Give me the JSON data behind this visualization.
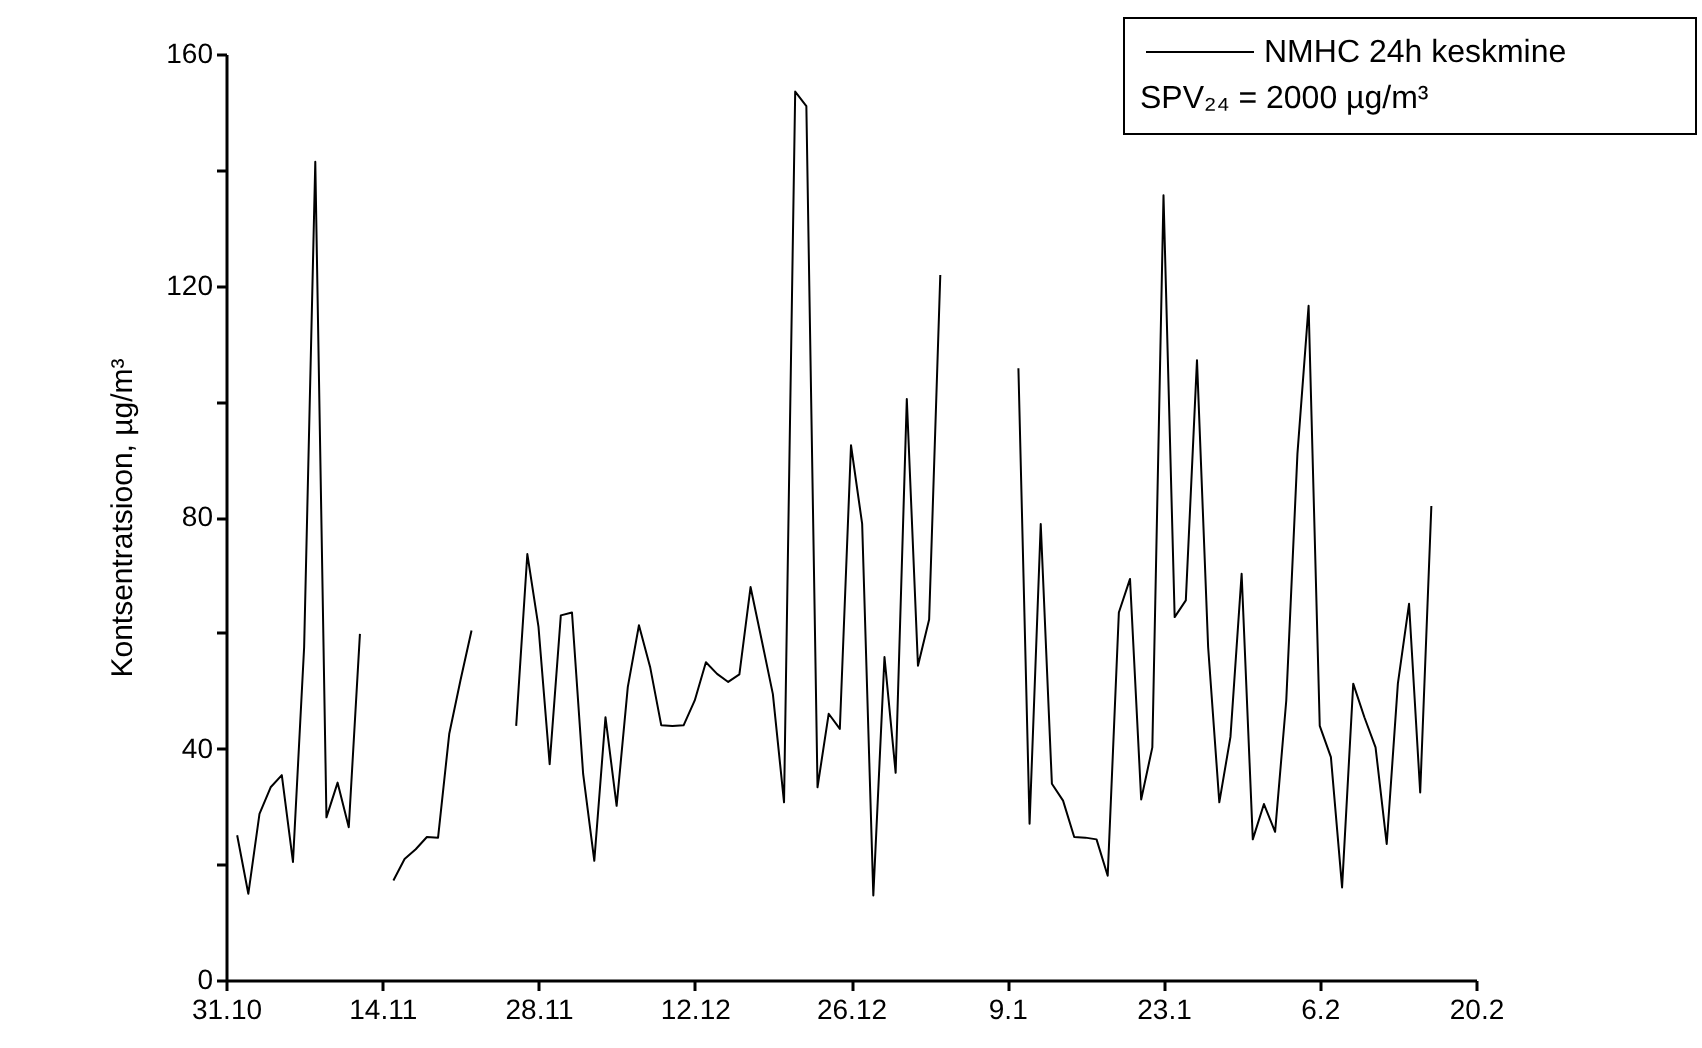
{
  "chart_data": {
    "type": "line",
    "ylabel": "Kontsentratsioon, µg/m³",
    "annotations": [
      "SPV₂₄ = 2000 µg/m³"
    ],
    "categories": [
      "31.10",
      null,
      null,
      null,
      null,
      null,
      null,
      null,
      null,
      null,
      null,
      null,
      null,
      null,
      "14.11",
      null,
      null,
      null,
      null,
      null,
      null,
      null,
      null,
      null,
      null,
      null,
      null,
      null,
      "28.11",
      null,
      null,
      null,
      null,
      null,
      null,
      null,
      null,
      null,
      null,
      null,
      null,
      null,
      "12.12",
      null,
      null,
      null,
      null,
      null,
      null,
      null,
      null,
      null,
      null,
      null,
      null,
      null,
      "26.12",
      null,
      null,
      null,
      null,
      null,
      null,
      null,
      null,
      null,
      null,
      null,
      null,
      null,
      "9.1",
      null,
      null,
      null,
      null,
      null,
      null,
      null,
      null,
      null,
      null,
      null,
      null,
      null,
      "23.1",
      null,
      null,
      null,
      null,
      null,
      null,
      null,
      null,
      null,
      null,
      null,
      null,
      null,
      "6.2",
      null,
      null,
      null,
      null,
      null,
      null,
      null,
      null,
      null,
      null,
      null,
      null,
      null,
      "20.2"
    ],
    "series": [
      {
        "name": "NMHC 24h keskmine",
        "color": "#000000",
        "values": [
          null,
          25.0,
          14.9,
          28.7,
          33.3,
          35.4,
          20.4,
          57.5,
          141.4,
          28.1,
          34.1,
          26.4,
          59.8,
          null,
          null,
          17.2,
          20.9,
          22.6,
          24.7,
          24.6,
          42.5,
          51.7,
          60.4,
          null,
          null,
          null,
          43.9,
          73.6,
          61.0,
          37.3,
          63.0,
          63.5,
          35.6,
          20.6,
          45.4,
          30.1,
          50.6,
          61.3,
          54.1,
          44.0,
          43.9,
          44.0,
          48.3,
          54.9,
          52.9,
          51.5,
          52.8,
          67.9,
          58.7,
          49.4,
          30.7,
          153.5,
          151.0,
          33.3,
          46.0,
          43.4,
          92.4,
          78.8,
          14.6,
          55.8,
          35.8,
          100.4,
          54.3,
          62.3,
          121.8,
          null,
          null,
          null,
          null,
          null,
          null,
          105.7,
          27.0,
          78.8,
          33.9,
          31.0,
          24.7,
          24.6,
          24.3,
          18.0,
          63.5,
          69.3,
          31.2,
          40.2,
          135.6,
          62.7,
          65.6,
          107.1,
          57.5,
          30.7,
          42.0,
          70.2,
          24.3,
          30.4,
          25.6,
          48.3,
          90.9,
          116.5,
          43.9,
          38.5,
          16.0,
          51.2,
          45.4,
          40.2,
          23.5,
          51.2,
          65.0,
          32.4,
          81.9,
          null,
          null,
          null,
          null
        ]
      }
    ],
    "ylim": [
      0,
      160
    ],
    "yticks": [
      0,
      {
        "value": 20,
        "label": null
      },
      40,
      {
        "value": 60,
        "label": null
      },
      80,
      {
        "value": 100,
        "label": null
      },
      120,
      {
        "value": 140,
        "label": null
      },
      160
    ],
    "grid": false,
    "legend": "top right",
    "line_style": "solid",
    "marker": "none"
  }
}
